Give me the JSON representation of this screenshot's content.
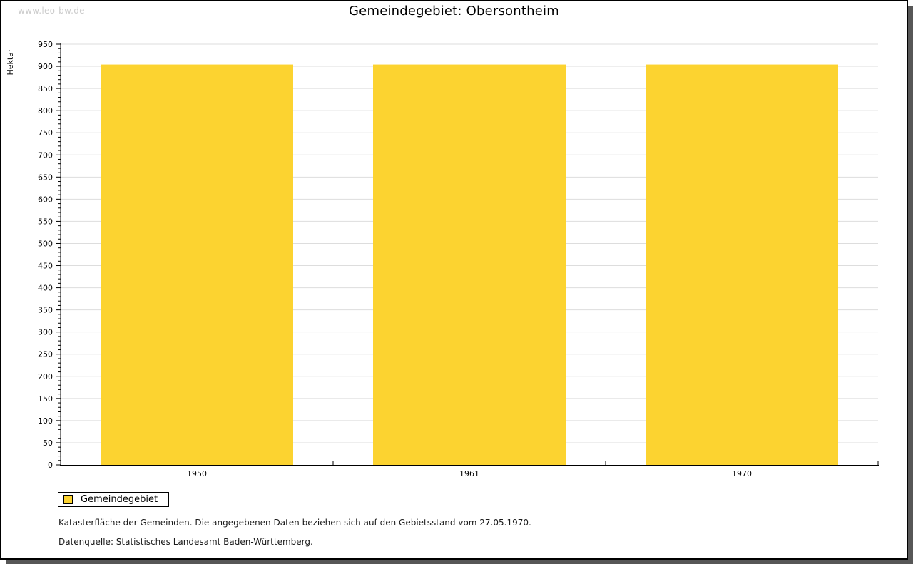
{
  "watermark": "www.leo-bw.de",
  "title": "Gemeindegebiet: Obersontheim",
  "chart_data": {
    "type": "bar",
    "categories": [
      "1950",
      "1961",
      "1970"
    ],
    "values": [
      904,
      904,
      904
    ],
    "series": [
      {
        "name": "Gemeindegebiet",
        "values": [
          904,
          904,
          904
        ]
      }
    ],
    "title": "Gemeindegebiet: Obersontheim",
    "xlabel": "",
    "ylabel": "Hektar",
    "ylim": [
      0,
      950
    ],
    "y_tick_step": 50,
    "y_minor_tick_step": 10,
    "grid": true,
    "legend_position": "bottom-left",
    "bar_color": "#FCD330",
    "grid_color": "#DDDDDD",
    "axis_color": "#000000"
  },
  "legend": {
    "items": [
      {
        "label": "Gemeindegebiet",
        "color": "#FCD330"
      }
    ]
  },
  "footnotes": {
    "line1": "Katasterfläche der Gemeinden. Die angegebenen Daten beziehen sich auf den Gebietsstand vom 27.05.1970.",
    "line2": "Datenquelle: Statistisches Landesamt Baden-Württemberg."
  }
}
